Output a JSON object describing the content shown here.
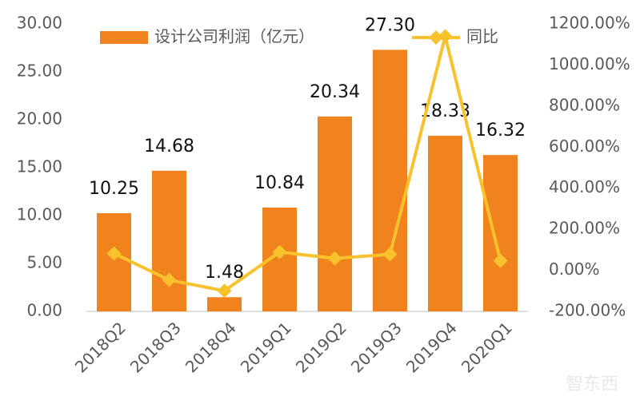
{
  "chart_data": {
    "type": "bar",
    "categories": [
      "2018Q2",
      "2018Q3",
      "2018Q4",
      "2019Q1",
      "2019Q2",
      "2019Q3",
      "2019Q4",
      "2020Q1"
    ],
    "series": [
      {
        "name": "设计公司利润（亿元）",
        "type": "bar",
        "color": "#f0831e",
        "values": [
          10.25,
          14.68,
          1.48,
          10.84,
          20.34,
          27.3,
          18.33,
          16.32
        ],
        "value_labels": [
          "10.25",
          "14.68",
          "1.48",
          "10.84",
          "20.34",
          "27.30",
          "18.33",
          "16.32"
        ]
      },
      {
        "name": "同比",
        "type": "line",
        "axis": "y2",
        "color": "#f8c22c",
        "values": [
          82,
          -47,
          -100,
          89,
          58,
          78,
          1140,
          47
        ]
      }
    ],
    "ylim": [
      0,
      30
    ],
    "yticks": [
      {
        "value": 0,
        "label": "0.00"
      },
      {
        "value": 5,
        "label": "5.00"
      },
      {
        "value": 10,
        "label": "10.00"
      },
      {
        "value": 15,
        "label": "15.00"
      },
      {
        "value": 20,
        "label": "20.00"
      },
      {
        "value": 25,
        "label": "25.00"
      },
      {
        "value": 30,
        "label": "30.00"
      }
    ],
    "y2lim": [
      -200,
      1200
    ],
    "y2ticks": [
      {
        "value": -200,
        "label": "-200.00%"
      },
      {
        "value": 0,
        "label": "0.00%"
      },
      {
        "value": 200,
        "label": "200.00%"
      },
      {
        "value": 400,
        "label": "400.00%"
      },
      {
        "value": 600,
        "label": "600.00%"
      },
      {
        "value": 800,
        "label": "800.00%"
      },
      {
        "value": 1000,
        "label": "1000.00%"
      },
      {
        "value": 1200,
        "label": "1200.00%"
      }
    ],
    "legend": "top",
    "watermark": "智东西"
  }
}
